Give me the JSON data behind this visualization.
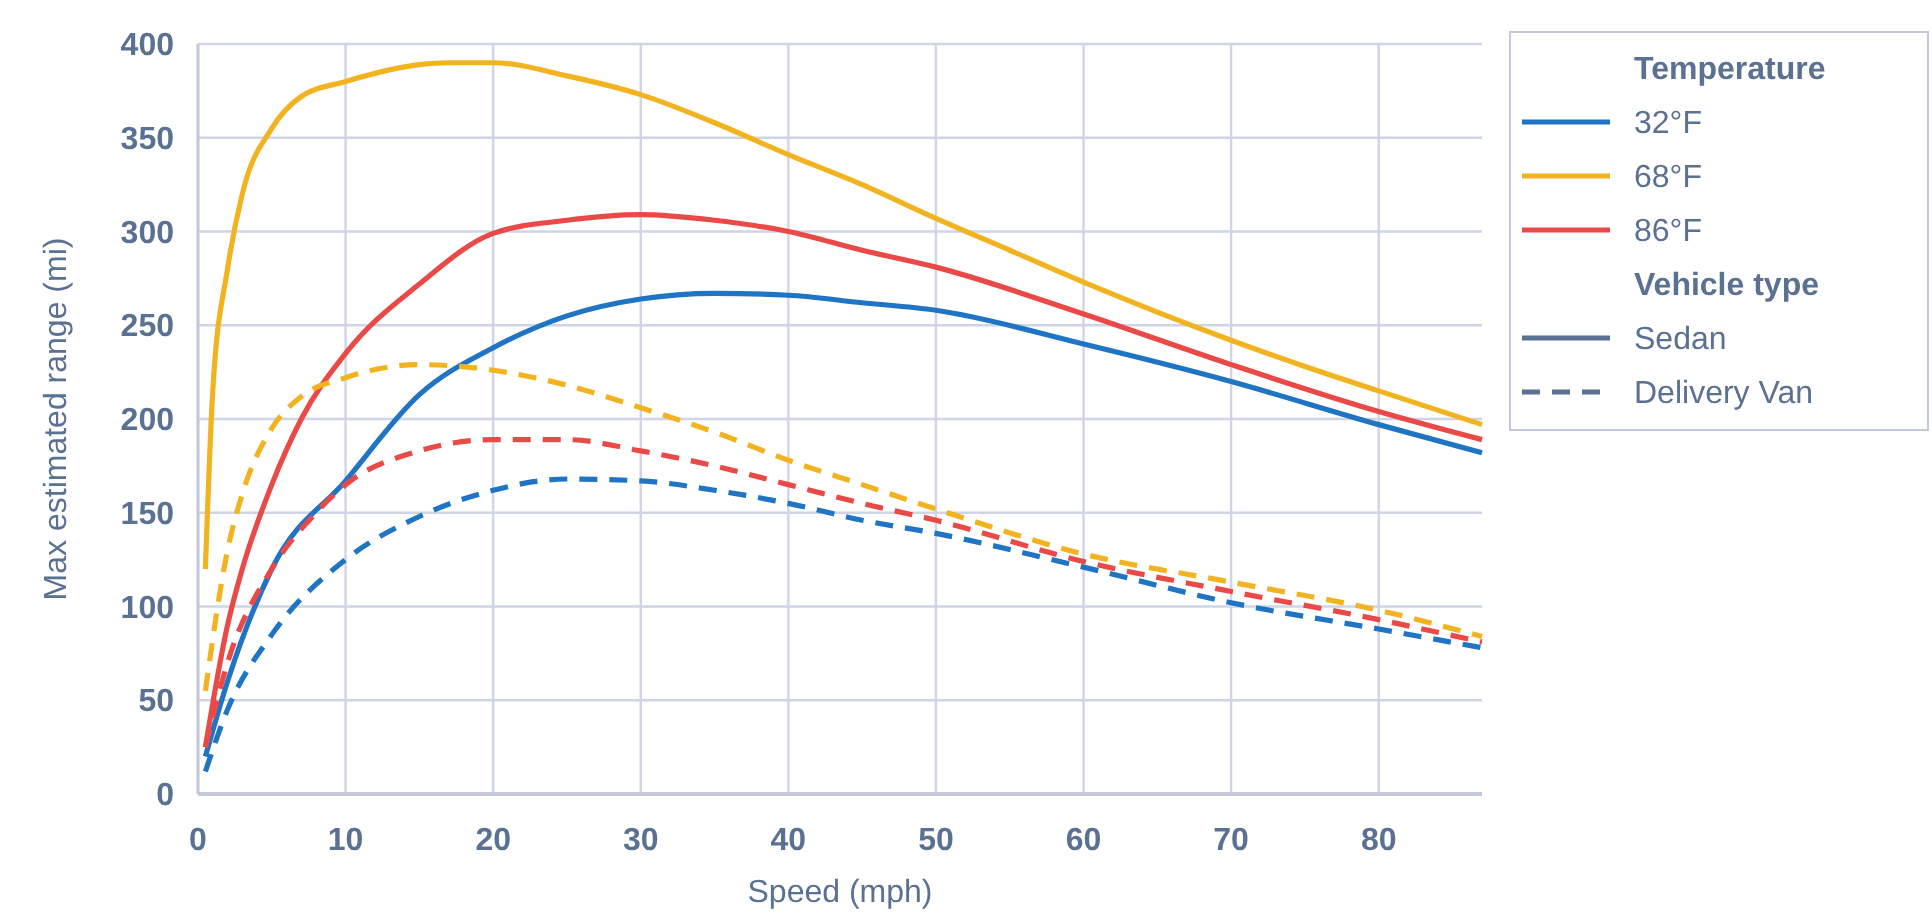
{
  "chart_data": {
    "type": "line",
    "xlabel": "Speed (mph)",
    "ylabel": "Max estimated range (mi)",
    "legend_title": "Temperature",
    "annotations": [
      "Vehicle type"
    ],
    "xlim": [
      0,
      87
    ],
    "xticks": [
      0,
      10,
      20,
      30,
      40,
      50,
      60,
      70,
      80
    ],
    "ylim": [
      0,
      400
    ],
    "yticks": [
      0,
      50,
      100,
      150,
      200,
      250,
      300,
      350,
      400
    ],
    "grid": true,
    "legend": "right",
    "marker": "none",
    "series": [
      {
        "name": "32°F",
        "color": "#1f74c4",
        "line_style": "solid",
        "x": [
          0.5,
          2,
          5,
          10,
          15,
          20,
          25,
          30,
          35,
          40,
          45,
          50,
          60,
          70,
          80,
          87
        ],
        "values": [
          20,
          60,
          120,
          167,
          213,
          238,
          255,
          264,
          267,
          266,
          262,
          258,
          240,
          220,
          197,
          182
        ]
      },
      {
        "name": "68°F",
        "color": "#f2b320",
        "line_style": "solid",
        "x": [
          0.5,
          1,
          2,
          3,
          5,
          7,
          10,
          15,
          17,
          20,
          25,
          30,
          35,
          40,
          45,
          50,
          55,
          60,
          65,
          70,
          75,
          80,
          87
        ],
        "values": [
          120,
          215,
          280,
          320,
          355,
          372,
          380,
          389,
          390,
          390,
          383,
          373,
          358,
          341,
          325,
          307,
          290,
          273,
          257,
          242,
          228,
          215,
          197
        ]
      },
      {
        "name": "86°F",
        "color": "#ea4a47",
        "line_style": "solid",
        "x": [
          0.5,
          2,
          3,
          5,
          7,
          10,
          15,
          20,
          25,
          30,
          35,
          40,
          45,
          50,
          60,
          70,
          80,
          87
        ],
        "values": [
          25,
          90,
          120,
          165,
          200,
          235,
          272,
          299,
          306,
          309,
          306,
          300,
          290,
          281,
          256,
          229,
          204,
          189
        ]
      },
      {
        "color": "#1f74c4",
        "line_style": "dashed",
        "x": [
          0.5,
          2,
          5,
          10,
          15,
          20,
          25,
          30,
          35,
          40,
          45,
          50,
          60,
          70,
          80,
          87
        ],
        "values": [
          12,
          45,
          85,
          125,
          148,
          162,
          168,
          167,
          162,
          155,
          146,
          139,
          121,
          102,
          88,
          78
        ]
      },
      {
        "color": "#f2b320",
        "line_style": "dashed",
        "x": [
          0.5,
          2,
          3,
          5,
          7,
          10,
          15,
          20,
          25,
          30,
          35,
          40,
          45,
          50,
          60,
          70,
          80,
          87
        ],
        "values": [
          55,
          130,
          160,
          195,
          212,
          222,
          229,
          226,
          218,
          206,
          193,
          178,
          165,
          152,
          128,
          113,
          98,
          84
        ]
      },
      {
        "color": "#ea4a47",
        "line_style": "dashed",
        "x": [
          0.5,
          2,
          5,
          8,
          10,
          15,
          20,
          25,
          30,
          35,
          40,
          45,
          50,
          60,
          70,
          80,
          87
        ],
        "values": [
          25,
          70,
          120,
          150,
          165,
          183,
          189,
          189,
          183,
          175,
          165,
          155,
          146,
          124,
          108,
          93,
          81
        ]
      },
      {
        "name": "Sedan",
        "color": "#5b7192",
        "line_style": "solid"
      },
      {
        "name": "Delivery Van",
        "color": "#5b7192",
        "line_style": "dashed"
      }
    ]
  }
}
